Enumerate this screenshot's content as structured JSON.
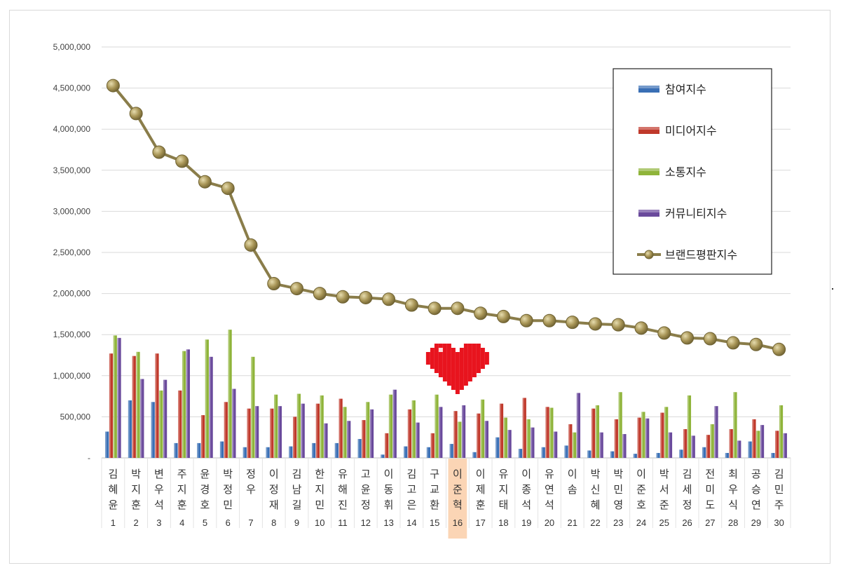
{
  "chart_data": {
    "type": "bar",
    "title": "",
    "xlabel": "",
    "ylabel": "",
    "ylim": [
      0,
      5000000
    ],
    "yticks": [
      "-",
      "500,000",
      "1,000,000",
      "1,500,000",
      "2,000,000",
      "2,500,000",
      "3,000,000",
      "3,500,000",
      "4,000,000",
      "4,500,000",
      "5,000,000"
    ],
    "grid": true,
    "legend_position": "top-right",
    "highlight_rank": 16,
    "categories": [
      "김혜윤",
      "박지훈",
      "변우석",
      "주지훈",
      "윤경호",
      "박정민",
      "정우",
      "이정재",
      "김남길",
      "한지민",
      "유해진",
      "고윤정",
      "이동휘",
      "김고은",
      "구교환",
      "이준혁",
      "이제훈",
      "유지태",
      "이종석",
      "유연석",
      "이솜",
      "박신혜",
      "박민영",
      "이준호",
      "박서준",
      "김세정",
      "전미도",
      "최우식",
      "공승연",
      "김민주"
    ],
    "ranks": [
      "1",
      "2",
      "3",
      "4",
      "5",
      "6",
      "7",
      "8",
      "9",
      "10",
      "11",
      "12",
      "13",
      "14",
      "15",
      "16",
      "17",
      "18",
      "19",
      "20",
      "21",
      "22",
      "23",
      "24",
      "25",
      "26",
      "27",
      "28",
      "29",
      "30"
    ],
    "series": [
      {
        "name": "참여지수",
        "type": "bar",
        "color": "#3a6fb5",
        "values": [
          320000,
          700000,
          680000,
          180000,
          180000,
          200000,
          130000,
          130000,
          140000,
          180000,
          180000,
          230000,
          40000,
          140000,
          130000,
          170000,
          70000,
          250000,
          110000,
          130000,
          150000,
          90000,
          80000,
          50000,
          60000,
          100000,
          130000,
          60000,
          200000,
          60000
        ]
      },
      {
        "name": "미디어지수",
        "type": "bar",
        "color": "#c0392b",
        "values": [
          1270000,
          1240000,
          1270000,
          820000,
          520000,
          680000,
          600000,
          600000,
          500000,
          660000,
          720000,
          460000,
          300000,
          590000,
          300000,
          570000,
          540000,
          660000,
          730000,
          620000,
          410000,
          600000,
          470000,
          490000,
          550000,
          350000,
          280000,
          350000,
          470000,
          330000
        ]
      },
      {
        "name": "소통지수",
        "type": "bar",
        "color": "#8fb43a",
        "values": [
          1490000,
          1290000,
          820000,
          1300000,
          1440000,
          1560000,
          1230000,
          770000,
          780000,
          760000,
          620000,
          680000,
          770000,
          700000,
          770000,
          440000,
          710000,
          490000,
          470000,
          610000,
          310000,
          640000,
          800000,
          560000,
          620000,
          760000,
          410000,
          800000,
          330000,
          640000
        ]
      },
      {
        "name": "커뮤니티지수",
        "type": "bar",
        "color": "#6a4a9c",
        "values": [
          1460000,
          960000,
          950000,
          1320000,
          1230000,
          840000,
          630000,
          630000,
          660000,
          420000,
          450000,
          590000,
          830000,
          430000,
          620000,
          640000,
          450000,
          340000,
          370000,
          320000,
          790000,
          310000,
          290000,
          480000,
          310000,
          270000,
          630000,
          210000,
          400000,
          300000
        ]
      },
      {
        "name": "브랜드평판지수",
        "type": "line",
        "color": "#8a7d4a",
        "values": [
          4530000,
          4190000,
          3720000,
          3610000,
          3360000,
          3280000,
          2590000,
          2120000,
          2060000,
          2000000,
          1960000,
          1950000,
          1930000,
          1860000,
          1820000,
          1820000,
          1760000,
          1720000,
          1670000,
          1670000,
          1650000,
          1630000,
          1620000,
          1580000,
          1520000,
          1460000,
          1450000,
          1400000,
          1380000,
          1320000
        ]
      }
    ]
  }
}
